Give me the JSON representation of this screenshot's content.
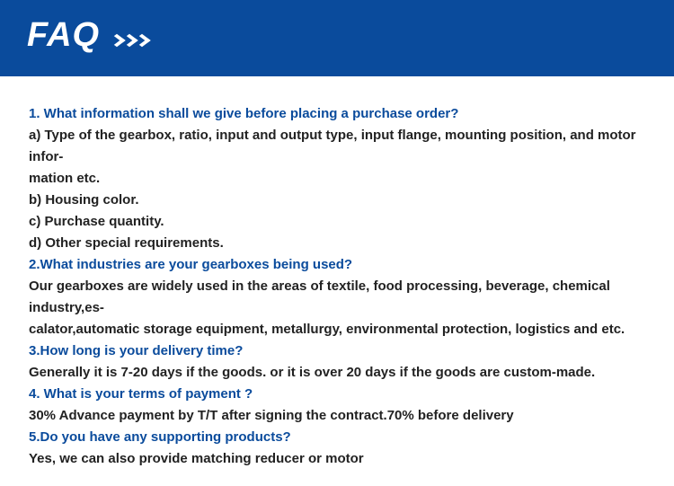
{
  "header": {
    "title": "FAQ"
  },
  "faq": {
    "q1": "1. What information shall we give before placing a purchase order?",
    "a1a": "a) Type of the gearbox, ratio, input and output type, input flange, mounting position, and motor infor-",
    "a1a2": "mation etc.",
    "a1b": "b) Housing color.",
    "a1c": "c) Purchase quantity.",
    "a1d": "d) Other special requirements.",
    "q2": "2.What industries are your gearboxes being used?",
    "a2a": "Our gearboxes are widely used in the areas of textile, food processing, beverage, chemical industry,es-",
    "a2b": "calator,automatic storage equipment, metallurgy, environmental protection, logistics and etc.",
    "q3": "3.How long is your delivery time?",
    "a3": "Generally it is 7-20 days if the goods. or it is over 20 days if the goods are custom-made.",
    "q4": "4. What is your terms of payment ?",
    "a4": "30% Advance payment by T/T after signing the contract.70% before delivery",
    "q5": "5.Do you have any supporting products?",
    "a5": "Yes, we can also provide matching reducer or motor"
  }
}
